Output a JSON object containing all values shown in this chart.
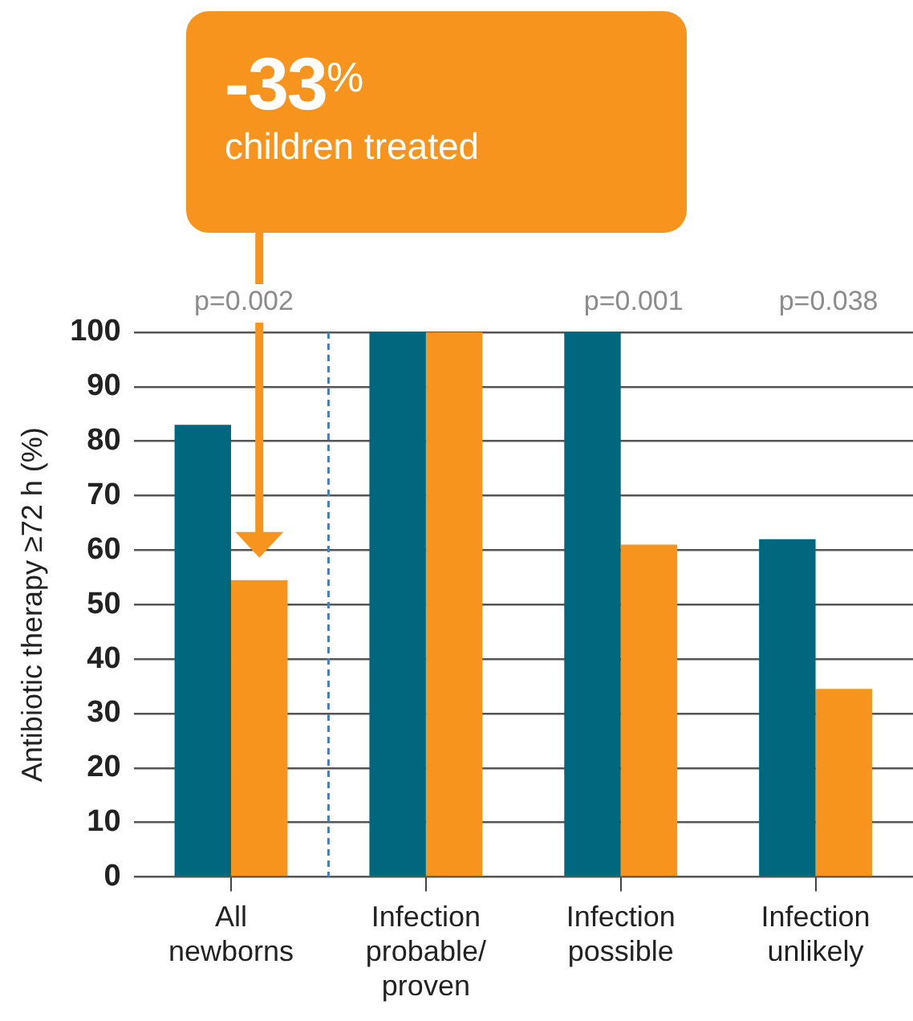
{
  "chart_data": {
    "type": "bar",
    "ylabel": "Antibiotic therapy ≥72 h (%)",
    "categories": [
      "All newborns",
      "Infection probable/ proven",
      "Infection possible",
      "Infection unlikely"
    ],
    "series": [
      {
        "color": "#00677f",
        "values": [
          83,
          100,
          100,
          62
        ]
      },
      {
        "color": "#f7941d",
        "values": [
          54.5,
          100,
          61,
          34.5
        ]
      }
    ],
    "ylim": [
      0,
      100
    ],
    "yticks": [
      0,
      10,
      20,
      30,
      40,
      50,
      60,
      70,
      80,
      90,
      100
    ],
    "grid": "y",
    "legend": false,
    "annotations": [
      "-33$^{%}$",
      "children treated",
      "p=0.002",
      "p=0.001",
      "p=0.038"
    ]
  }
}
